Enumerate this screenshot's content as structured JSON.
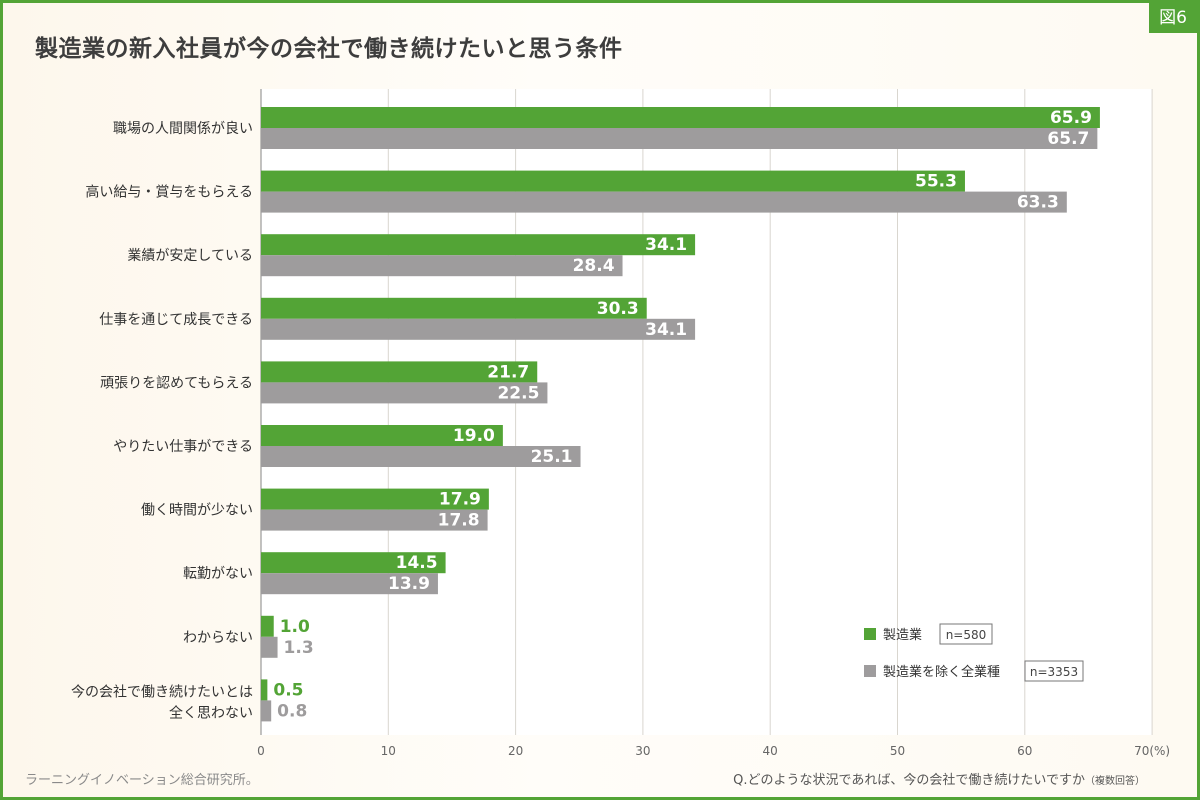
{
  "figure_badge": "図6",
  "title": "製造業の新入社員が今の会社で働き続けたいと思う条件",
  "source": "ラーニングイノベーション総合研究所。",
  "question": "Q.どのような状況であれば、今の会社で働き続けたいですか",
  "question_note": "（複数回答）",
  "colors": {
    "manufacturing": "#53a436",
    "others": "#9e9c9d",
    "frame": "#53a436"
  },
  "chart_data": {
    "type": "bar",
    "orientation": "horizontal",
    "categories": [
      [
        "職場の人間関係が良い"
      ],
      [
        "高い給与・賞与をもらえる"
      ],
      [
        "業績が安定している"
      ],
      [
        "仕事を通じて成長できる"
      ],
      [
        "頑張りを認めてもらえる"
      ],
      [
        "やりたい仕事ができる"
      ],
      [
        "働く時間が少ない"
      ],
      [
        "転勤がない"
      ],
      [
        "わからない"
      ],
      [
        "今の会社で働き続けたいとは",
        "全く思わない"
      ]
    ],
    "series": [
      {
        "name": "製造業",
        "n_label": "n=580",
        "color": "#53a436",
        "values": [
          65.9,
          55.3,
          34.1,
          30.3,
          21.7,
          19.0,
          17.9,
          14.5,
          1.0,
          0.5
        ]
      },
      {
        "name": "製造業を除く全業種",
        "n_label": "n=3353",
        "color": "#9e9c9d",
        "values": [
          65.7,
          63.3,
          28.4,
          34.1,
          22.5,
          25.1,
          17.8,
          13.9,
          1.3,
          0.8
        ]
      }
    ],
    "xlim": [
      0,
      70
    ],
    "xticks": [
      "0",
      "10",
      "20",
      "30",
      "40",
      "50",
      "60",
      "70(%)"
    ],
    "grid": true,
    "legend_position": "bottom-right"
  }
}
